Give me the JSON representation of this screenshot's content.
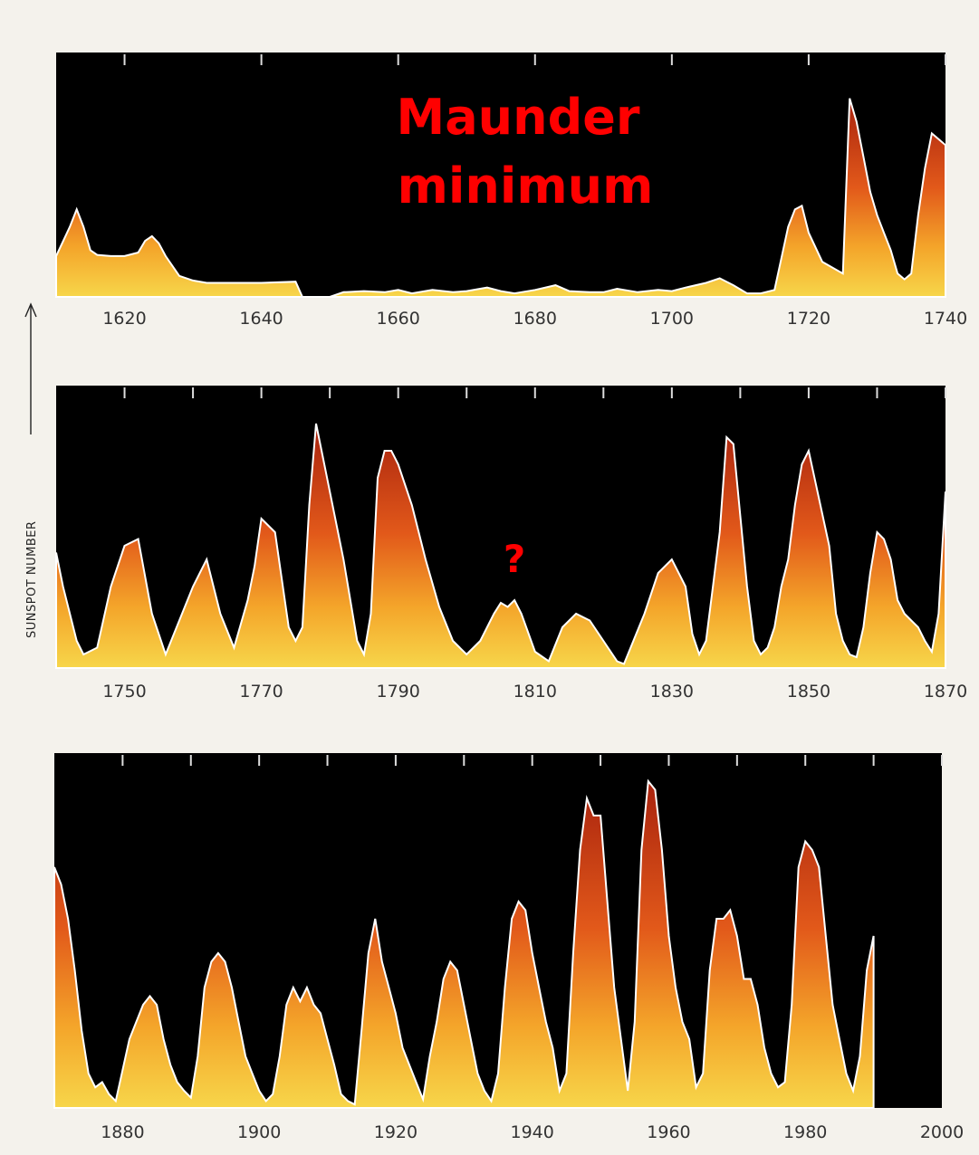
{
  "colors": {
    "background": "#000000",
    "fill_top": "#b52a10",
    "fill_bottom": "#f7d13c",
    "outline": "#ffffff",
    "annotation": "#ff0000",
    "page": "#f4f2ec"
  },
  "y_axis_label": "SUNSPOT NUMBER",
  "chart_data": [
    {
      "type": "area",
      "xlim": [
        1610,
        1740
      ],
      "ylim": [
        0,
        200
      ],
      "xticks": [
        1620,
        1640,
        1660,
        1680,
        1700,
        1720,
        1740
      ],
      "annotations": [
        "Maunder",
        "minimum"
      ],
      "x": [
        1610,
        1612,
        1613,
        1614,
        1615,
        1616,
        1618,
        1620,
        1622,
        1623,
        1624,
        1625,
        1626,
        1628,
        1630,
        1632,
        1635,
        1640,
        1645,
        1646,
        1648,
        1650,
        1652,
        1655,
        1658,
        1660,
        1662,
        1665,
        1668,
        1670,
        1673,
        1675,
        1677,
        1680,
        1683,
        1685,
        1688,
        1690,
        1692,
        1695,
        1698,
        1700,
        1702,
        1705,
        1707,
        1709,
        1711,
        1713,
        1715,
        1717,
        1718,
        1719,
        1720,
        1722,
        1725,
        1726,
        1727,
        1728,
        1729,
        1730,
        1731,
        1732,
        1733,
        1734,
        1735,
        1736,
        1737,
        1738,
        1739,
        1740
      ],
      "y": [
        35,
        60,
        75,
        60,
        40,
        36,
        35,
        35,
        38,
        48,
        52,
        46,
        35,
        18,
        14,
        12,
        12,
        12,
        13,
        0,
        0,
        0,
        4,
        5,
        4,
        6,
        3,
        6,
        4,
        5,
        8,
        5,
        3,
        6,
        10,
        5,
        4,
        4,
        7,
        4,
        6,
        5,
        8,
        12,
        16,
        10,
        3,
        3,
        6,
        60,
        75,
        78,
        55,
        30,
        20,
        170,
        150,
        120,
        90,
        70,
        55,
        40,
        20,
        15,
        20,
        70,
        110,
        140,
        135,
        130
      ]
    },
    {
      "type": "area",
      "xlim": [
        1740,
        1870
      ],
      "ylim": [
        0,
        200
      ],
      "xticks": [
        1750,
        1760,
        1770,
        1780,
        1790,
        1800,
        1810,
        1820,
        1830,
        1840,
        1850,
        1860,
        1870
      ],
      "tick_labels": [
        1750,
        1770,
        1790,
        1810,
        1830,
        1850,
        1870
      ],
      "annotations": [
        "?"
      ],
      "x": [
        1740,
        1741,
        1743,
        1744,
        1746,
        1748,
        1750,
        1752,
        1754,
        1756,
        1758,
        1760,
        1762,
        1764,
        1766,
        1768,
        1769,
        1770,
        1772,
        1774,
        1775,
        1776,
        1777,
        1778,
        1779,
        1782,
        1784,
        1785,
        1786,
        1787,
        1788,
        1789,
        1790,
        1792,
        1794,
        1796,
        1798,
        1800,
        1802,
        1804,
        1805,
        1806,
        1807,
        1808,
        1810,
        1812,
        1814,
        1816,
        1818,
        1820,
        1822,
        1823,
        1826,
        1828,
        1829,
        1830,
        1832,
        1833,
        1834,
        1835,
        1836,
        1837,
        1838,
        1839,
        1841,
        1842,
        1843,
        1844,
        1845,
        1846,
        1847,
        1848,
        1849,
        1850,
        1853,
        1854,
        1855,
        1856,
        1857,
        1858,
        1859,
        1860,
        1861,
        1862,
        1863,
        1864,
        1865,
        1866,
        1867,
        1868,
        1869,
        1870
      ],
      "y": [
        85,
        60,
        20,
        10,
        15,
        60,
        90,
        95,
        40,
        10,
        35,
        60,
        80,
        40,
        15,
        50,
        75,
        110,
        100,
        30,
        20,
        30,
        120,
        180,
        155,
        80,
        20,
        10,
        40,
        140,
        160,
        160,
        150,
        120,
        80,
        45,
        20,
        10,
        20,
        40,
        48,
        45,
        50,
        40,
        12,
        5,
        30,
        40,
        35,
        20,
        5,
        3,
        40,
        70,
        75,
        80,
        60,
        25,
        10,
        20,
        60,
        100,
        170,
        165,
        60,
        20,
        10,
        15,
        30,
        60,
        80,
        120,
        150,
        160,
        90,
        40,
        20,
        10,
        8,
        30,
        70,
        100,
        95,
        80,
        50,
        40,
        35,
        30,
        20,
        12,
        40,
        130
      ]
    },
    {
      "type": "area",
      "xlim": [
        1870,
        2000
      ],
      "ylim": [
        0,
        200
      ],
      "xticks": [
        1880,
        1890,
        1900,
        1910,
        1920,
        1930,
        1940,
        1950,
        1960,
        1970,
        1980,
        1990,
        2000
      ],
      "tick_labels": [
        1880,
        1900,
        1920,
        1940,
        1960,
        1980,
        2000
      ],
      "data_end": 1990,
      "x": [
        1870,
        1871,
        1872,
        1873,
        1874,
        1875,
        1876,
        1877,
        1878,
        1879,
        1881,
        1883,
        1884,
        1885,
        1886,
        1887,
        1888,
        1889,
        1890,
        1891,
        1892,
        1893,
        1894,
        1895,
        1896,
        1897,
        1898,
        1899,
        1900,
        1901,
        1902,
        1903,
        1904,
        1905,
        1906,
        1907,
        1908,
        1909,
        1910,
        1911,
        1912,
        1913,
        1914,
        1915,
        1916,
        1917,
        1918,
        1919,
        1920,
        1921,
        1922,
        1923,
        1924,
        1925,
        1926,
        1927,
        1928,
        1929,
        1930,
        1931,
        1932,
        1933,
        1934,
        1935,
        1936,
        1937,
        1938,
        1939,
        1940,
        1941,
        1942,
        1943,
        1944,
        1945,
        1946,
        1947,
        1948,
        1949,
        1950,
        1951,
        1952,
        1953,
        1954,
        1955,
        1956,
        1957,
        1958,
        1959,
        1960,
        1961,
        1962,
        1963,
        1964,
        1965,
        1966,
        1967,
        1968,
        1969,
        1970,
        1971,
        1972,
        1973,
        1974,
        1975,
        1976,
        1977,
        1978,
        1979,
        1980,
        1981,
        1982,
        1983,
        1984,
        1985,
        1986,
        1987,
        1988,
        1989,
        1990
      ],
      "y": [
        140,
        130,
        110,
        80,
        45,
        20,
        12,
        15,
        8,
        4,
        40,
        60,
        65,
        60,
        40,
        25,
        15,
        10,
        6,
        30,
        70,
        85,
        90,
        85,
        70,
        50,
        30,
        20,
        10,
        4,
        8,
        30,
        60,
        70,
        62,
        70,
        60,
        55,
        40,
        25,
        8,
        4,
        2,
        45,
        90,
        110,
        85,
        70,
        55,
        35,
        25,
        15,
        5,
        30,
        50,
        75,
        85,
        80,
        60,
        40,
        20,
        10,
        4,
        20,
        70,
        110,
        120,
        115,
        90,
        70,
        50,
        35,
        10,
        20,
        90,
        150,
        180,
        170,
        170,
        120,
        70,
        40,
        10,
        50,
        150,
        190,
        185,
        150,
        100,
        70,
        50,
        40,
        12,
        20,
        80,
        110,
        110,
        115,
        100,
        75,
        75,
        60,
        35,
        20,
        12,
        15,
        60,
        140,
        155,
        150,
        140,
        100,
        60,
        40,
        20,
        10,
        30,
        80,
        100
      ]
    }
  ]
}
